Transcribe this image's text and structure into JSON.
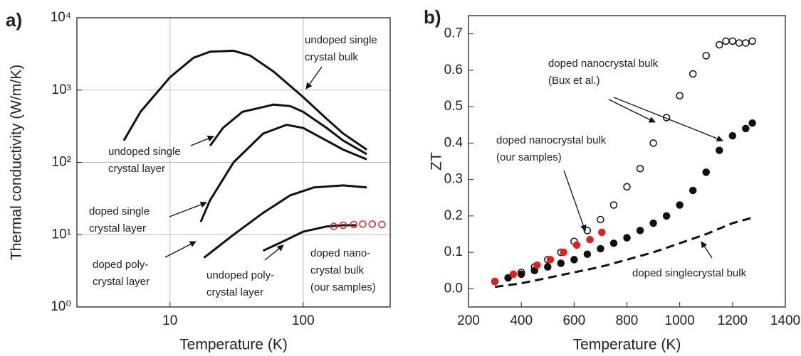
{
  "chart_data": [
    {
      "type": "line",
      "panel_label": "a)",
      "xlabel": "Temperature (K)",
      "ylabel": "Thermal conductivity (W/m/K)",
      "xscale": "log",
      "yscale": "log",
      "xlim": [
        2,
        450
      ],
      "ylim": [
        1,
        10000
      ],
      "xticks": [
        10,
        100
      ],
      "yticks": [
        {
          "value": 1,
          "label": "10⁰"
        },
        {
          "value": 10,
          "label": "10¹"
        },
        {
          "value": 100,
          "label": "10²"
        },
        {
          "value": 1000,
          "label": "10³"
        },
        {
          "value": 10000,
          "label": "10⁴"
        }
      ],
      "grid": true,
      "series": [
        {
          "style": "line",
          "color": "#111111",
          "x": [
            4.5,
            6,
            10,
            15,
            20,
            30,
            40,
            60,
            100,
            150,
            200,
            300
          ],
          "values": [
            200,
            500,
            1500,
            2800,
            3400,
            3500,
            3000,
            1800,
            800,
            400,
            250,
            150
          ]
        },
        {
          "style": "line",
          "color": "#111111",
          "x": [
            20,
            25,
            35,
            60,
            80,
            100,
            150,
            200,
            300
          ],
          "values": [
            170,
            300,
            500,
            630,
            600,
            500,
            300,
            200,
            130
          ]
        },
        {
          "style": "line",
          "color": "#111111",
          "x": [
            17,
            20,
            30,
            50,
            75,
            100,
            150,
            200,
            300
          ],
          "values": [
            15,
            30,
            100,
            250,
            330,
            300,
            200,
            150,
            110
          ]
        },
        {
          "style": "line",
          "color": "#111111",
          "x": [
            18,
            30,
            50,
            80,
            120,
            200,
            300
          ],
          "values": [
            4.8,
            10,
            20,
            35,
            45,
            48,
            45
          ]
        },
        {
          "style": "line",
          "color": "#111111",
          "x": [
            50,
            70,
            100,
            150,
            200,
            250
          ],
          "values": [
            6,
            8,
            11,
            13,
            13.5,
            13.5
          ]
        },
        {
          "style": "open",
          "color": "#e02020",
          "x": [
            170,
            200,
            240,
            280,
            330,
            390
          ],
          "values": [
            13,
            13.5,
            13.8,
            14,
            14,
            13.8
          ]
        }
      ],
      "annotations": [
        {
          "lines": [
            "undoped single",
            "crystal bulk"
          ]
        },
        {
          "lines": [
            "undoped single",
            "crystal layer"
          ]
        },
        {
          "lines": [
            "doped single",
            "crystal layer"
          ]
        },
        {
          "lines": [
            "doped poly-",
            "crystal layer"
          ]
        },
        {
          "lines": [
            "undoped poly-",
            "crystal layer"
          ]
        },
        {
          "lines": [
            "doped nano-",
            "crystal bulk",
            "(our samples)"
          ]
        }
      ]
    },
    {
      "type": "scatter",
      "panel_label": "b)",
      "xlabel": "Temperature (K)",
      "ylabel": "ZT",
      "xscale": "linear",
      "yscale": "linear",
      "xlim": [
        200,
        1400
      ],
      "ylim": [
        -0.05,
        0.75
      ],
      "xticks": [
        200,
        400,
        600,
        800,
        1000,
        1200,
        1400
      ],
      "yticks": [
        {
          "value": 0,
          "label": "0.0"
        },
        0.1,
        0.2,
        0.3,
        0.4,
        0.5,
        0.6,
        0.7
      ],
      "grid": false,
      "series": [
        {
          "style": "open",
          "color": "#111111",
          "x": [
            300,
            350,
            400,
            450,
            500,
            550,
            600,
            650,
            700,
            750,
            800,
            850,
            900,
            950,
            1000,
            1050,
            1100,
            1150,
            1175,
            1200,
            1225,
            1250,
            1275
          ],
          "values": [
            0.02,
            0.03,
            0.045,
            0.06,
            0.08,
            0.1,
            0.13,
            0.16,
            0.19,
            0.23,
            0.28,
            0.33,
            0.4,
            0.47,
            0.53,
            0.59,
            0.64,
            0.67,
            0.68,
            0.68,
            0.675,
            0.675,
            0.68
          ]
        },
        {
          "style": "filled",
          "color": "#111111",
          "x": [
            300,
            350,
            400,
            450,
            500,
            550,
            600,
            650,
            700,
            750,
            800,
            850,
            900,
            950,
            1000,
            1050,
            1100,
            1150,
            1200,
            1250,
            1275
          ],
          "values": [
            0.02,
            0.03,
            0.04,
            0.05,
            0.06,
            0.07,
            0.08,
            0.095,
            0.11,
            0.125,
            0.14,
            0.16,
            0.18,
            0.2,
            0.23,
            0.27,
            0.32,
            0.38,
            0.42,
            0.44,
            0.455
          ]
        },
        {
          "style": "filled",
          "color": "#e02020",
          "x": [
            300,
            370,
            460,
            510,
            560,
            610,
            660,
            705
          ],
          "values": [
            0.02,
            0.04,
            0.065,
            0.08,
            0.1,
            0.12,
            0.135,
            0.155
          ]
        },
        {
          "style": "dashed",
          "color": "#111111",
          "x": [
            300,
            400,
            500,
            600,
            700,
            800,
            900,
            1000,
            1100,
            1200,
            1275
          ],
          "values": [
            0.005,
            0.015,
            0.03,
            0.045,
            0.06,
            0.08,
            0.1,
            0.125,
            0.15,
            0.18,
            0.195
          ]
        }
      ],
      "annotations": [
        {
          "lines": [
            "doped nanocrystal bulk",
            "(Bux et al.)"
          ]
        },
        {
          "lines": [
            "doped nanocrystal bulk",
            "(our samples)"
          ]
        },
        {
          "lines": [
            "doped singlecrystal bulk"
          ]
        }
      ]
    }
  ]
}
